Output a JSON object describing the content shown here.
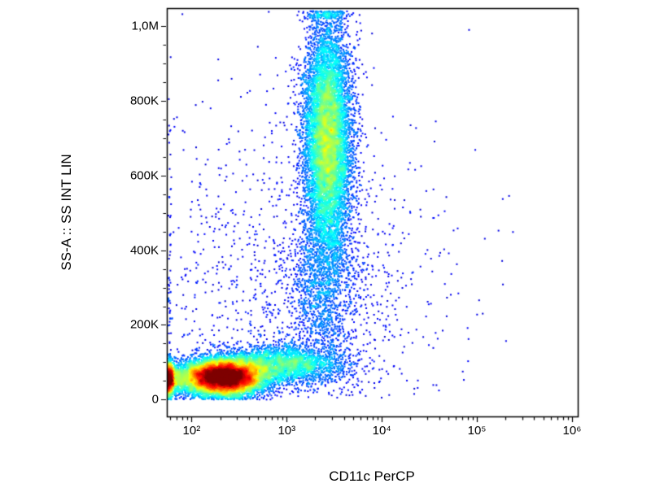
{
  "figure": {
    "background_color": "#ffffff",
    "axis_color": "#000000",
    "text_color": "#000000"
  },
  "chart_data": {
    "type": "scatter",
    "subtype": "flow-cytometry-pseudocolor-density",
    "title": "",
    "xlabel": "CD11c PerCP",
    "ylabel": "SS-A :: SS INT LIN",
    "x_scale": "log10",
    "y_scale": "linear",
    "x_log_range": [
      1.74,
      6.06
    ],
    "y_range": [
      -45000,
      1048000
    ],
    "x_floor_log": 1.755,
    "x_major_ticks": [
      {
        "log": 2,
        "label": "10²"
      },
      {
        "log": 3,
        "label": "10³"
      },
      {
        "log": 4,
        "label": "10⁴"
      },
      {
        "log": 5,
        "label": "10⁵"
      },
      {
        "log": 6,
        "label": "10⁶"
      }
    ],
    "y_major_ticks": [
      {
        "value": 0,
        "label": "0"
      },
      {
        "value": 200000,
        "label": "200K"
      },
      {
        "value": 400000,
        "label": "400K"
      },
      {
        "value": 600000,
        "label": "600K"
      },
      {
        "value": 800000,
        "label": "800K"
      },
      {
        "value": 1000000,
        "label": "1,0M"
      }
    ],
    "y_minor_tick_step": 50000,
    "colormap": "jet",
    "density_norm": 0.55,
    "density_gamma": 0.45,
    "point_size": 2,
    "seed": 1337,
    "populations": [
      {
        "name": "low-ssc-main",
        "count": 13000,
        "logx_mean": 2.33,
        "logx_sd": 0.21,
        "y_mean": 60000,
        "y_sd": 23000,
        "clamp_y_low": true
      },
      {
        "name": "low-ssc-right-tail",
        "count": 2800,
        "logx_mean": 2.95,
        "logx_sd": 0.33,
        "y_mean": 95000,
        "y_sd": 26000,
        "clamp_y_low": true
      },
      {
        "name": "left-edge-pileup",
        "count": 1600,
        "logx_mean": 1.72,
        "logx_sd": 0.1,
        "y_mean": 55000,
        "y_sd": 22000,
        "clamp_y_low": true
      },
      {
        "name": "high-ssc-cd11c-positive",
        "count": 9500,
        "logx_mean": 3.43,
        "logx_sd": 0.125,
        "y_mean": 700000,
        "y_sd": 155000,
        "clamp_y_high": true
      },
      {
        "name": "bridge-intermediate",
        "count": 1300,
        "logx_mean": 3.38,
        "logx_sd": 0.18,
        "y_mean": 300000,
        "y_sd": 110000
      },
      {
        "name": "sparse-background",
        "count": 1600,
        "logx_mean": 3.1,
        "logx_sd": 0.8,
        "y_mean": 260000,
        "y_sd": 270000
      }
    ]
  }
}
